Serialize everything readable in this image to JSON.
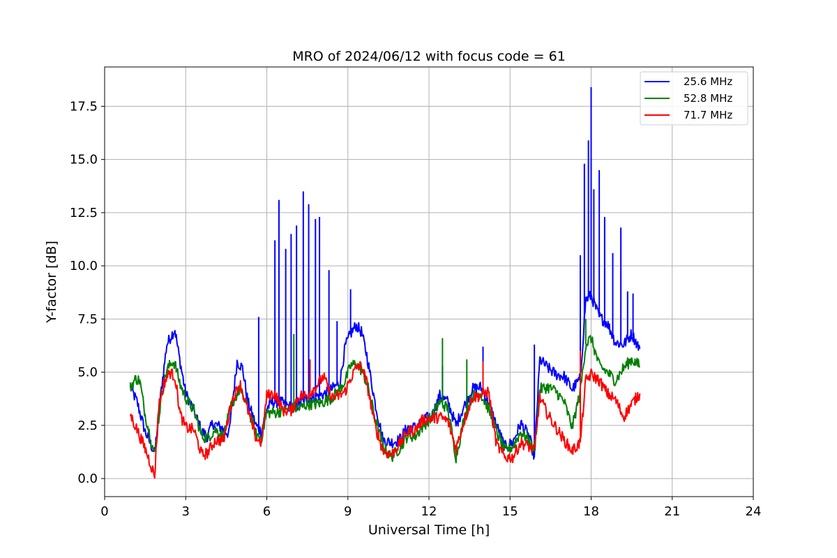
{
  "chart_data": {
    "type": "line",
    "title": "MRO of 2024/06/12 with focus code = 61",
    "xlabel": "Universal Time [h]",
    "ylabel": "Y-factor [dB]",
    "xlim": [
      0,
      24
    ],
    "ylim": [
      -0.85,
      19.35
    ],
    "xticks": [
      0,
      3,
      6,
      9,
      12,
      15,
      18,
      21,
      24
    ],
    "xtick_labels": [
      "0",
      "3",
      "6",
      "9",
      "12",
      "15",
      "18",
      "21",
      "24"
    ],
    "yticks": [
      0,
      2.5,
      5,
      7.5,
      10,
      12.5,
      15,
      17.5
    ],
    "ytick_labels": [
      "0.0",
      "2.5",
      "5.0",
      "7.5",
      "10.0",
      "12.5",
      "15.0",
      "17.5"
    ],
    "grid": true,
    "legend": "top-right",
    "series": [
      {
        "name": "25.6 MHz",
        "color": "#0000ff",
        "x": [
          0.95,
          1.2,
          1.5,
          1.85,
          2.1,
          2.3,
          2.5,
          2.6,
          2.75,
          3.0,
          3.3,
          3.6,
          3.8,
          4.0,
          4.3,
          4.6,
          4.9,
          5.1,
          5.3,
          5.6,
          5.8,
          6.0,
          6.2,
          6.5,
          6.8,
          7.0,
          7.3,
          7.6,
          7.9,
          8.2,
          8.5,
          8.7,
          8.9,
          9.1,
          9.3,
          9.5,
          9.7,
          10.0,
          10.3,
          10.6,
          10.9,
          11.2,
          11.5,
          11.8,
          12.1,
          12.4,
          12.7,
          13.0,
          13.3,
          13.6,
          13.9,
          14.2,
          14.5,
          14.8,
          15.1,
          15.4,
          15.7,
          15.9,
          16.1,
          16.4,
          16.7,
          17.0,
          17.3,
          17.6,
          17.8,
          18.0,
          18.3,
          18.6,
          18.9,
          19.2,
          19.5,
          19.8
        ],
        "y": [
          4.3,
          3.6,
          2.2,
          1.2,
          4.2,
          6.3,
          6.8,
          7.0,
          5.8,
          4.0,
          3.2,
          2.2,
          2.0,
          2.6,
          2.4,
          2.1,
          5.5,
          5.2,
          3.6,
          2.5,
          2.2,
          3.3,
          3.6,
          3.6,
          3.4,
          3.3,
          3.6,
          3.8,
          3.9,
          4.0,
          4.3,
          4.5,
          6.2,
          6.8,
          7.2,
          6.9,
          5.8,
          3.6,
          1.8,
          1.7,
          1.8,
          2.4,
          2.4,
          2.8,
          2.9,
          3.9,
          3.6,
          2.5,
          3.4,
          4.2,
          4.3,
          3.6,
          2.5,
          1.5,
          1.7,
          2.6,
          2.0,
          1.0,
          5.6,
          5.2,
          4.9,
          4.8,
          4.2,
          4.7,
          8.4,
          8.6,
          7.6,
          7.3,
          6.4,
          6.3,
          6.8,
          6.1
        ]
      },
      {
        "name": "52.8 MHz",
        "color": "#008000",
        "x": [
          0.95,
          1.15,
          1.3,
          1.5,
          1.85,
          2.1,
          2.3,
          2.5,
          2.6,
          2.8,
          3.0,
          3.3,
          3.6,
          3.8,
          4.1,
          4.4,
          4.7,
          5.0,
          5.3,
          5.6,
          5.8,
          6.0,
          6.3,
          6.6,
          6.9,
          7.2,
          7.5,
          7.8,
          8.1,
          8.4,
          8.7,
          8.9,
          9.1,
          9.3,
          9.5,
          9.7,
          10.0,
          10.3,
          10.6,
          10.9,
          11.2,
          11.5,
          11.8,
          12.1,
          12.4,
          12.7,
          13.0,
          13.3,
          13.6,
          13.9,
          14.2,
          14.5,
          14.8,
          15.1,
          15.4,
          15.7,
          15.9,
          16.1,
          16.4,
          16.7,
          17.0,
          17.3,
          17.6,
          17.8,
          18.0,
          18.3,
          18.6,
          18.9,
          19.2,
          19.5,
          19.8
        ],
        "y": [
          4.3,
          4.7,
          4.6,
          3.0,
          1.1,
          3.9,
          5.1,
          5.5,
          5.4,
          4.4,
          3.8,
          3.2,
          2.0,
          1.9,
          2.3,
          2.0,
          3.5,
          4.2,
          3.3,
          2.1,
          1.9,
          3.1,
          3.1,
          3.2,
          3.3,
          3.3,
          3.5,
          3.5,
          3.6,
          3.8,
          4.2,
          4.6,
          5.3,
          5.4,
          5.1,
          4.5,
          2.9,
          1.5,
          1.0,
          1.4,
          2.0,
          2.0,
          2.5,
          2.9,
          3.6,
          3.3,
          1.0,
          2.8,
          3.9,
          4.0,
          3.3,
          2.2,
          1.3,
          1.5,
          2.2,
          1.8,
          1.2,
          4.2,
          4.3,
          4.1,
          3.6,
          2.4,
          4.1,
          6.3,
          6.6,
          5.3,
          5.0,
          4.6,
          5.2,
          5.6,
          5.3
        ]
      },
      {
        "name": "71.7 MHz",
        "color": "#ff0000",
        "x": [
          0.95,
          1.2,
          1.5,
          1.7,
          1.85,
          2.0,
          2.2,
          2.4,
          2.6,
          2.8,
          3.0,
          3.3,
          3.6,
          3.8,
          4.1,
          4.4,
          4.7,
          5.0,
          5.3,
          5.6,
          5.8,
          6.0,
          6.3,
          6.6,
          6.9,
          7.2,
          7.5,
          7.8,
          8.1,
          8.4,
          8.7,
          8.9,
          9.1,
          9.3,
          9.5,
          9.7,
          10.0,
          10.3,
          10.6,
          10.9,
          11.2,
          11.5,
          11.8,
          12.1,
          12.4,
          12.7,
          13.0,
          13.3,
          13.6,
          13.9,
          14.2,
          14.5,
          14.8,
          15.1,
          15.4,
          15.7,
          15.9,
          16.1,
          16.4,
          16.7,
          17.0,
          17.3,
          17.6,
          17.8,
          18.0,
          18.3,
          18.6,
          18.9,
          19.2,
          19.5,
          19.8
        ],
        "y": [
          3.0,
          2.3,
          1.4,
          0.7,
          0.1,
          3.4,
          4.5,
          5.0,
          4.8,
          3.0,
          2.4,
          2.3,
          1.1,
          1.2,
          1.8,
          1.8,
          3.6,
          4.5,
          3.2,
          1.9,
          1.7,
          3.9,
          4.0,
          3.2,
          3.2,
          3.9,
          3.9,
          4.3,
          4.8,
          3.8,
          3.9,
          4.1,
          4.7,
          5.2,
          5.3,
          4.5,
          2.5,
          1.3,
          1.1,
          1.6,
          2.2,
          2.3,
          2.8,
          2.8,
          2.9,
          2.7,
          1.4,
          2.7,
          3.8,
          3.9,
          4.1,
          1.6,
          1.0,
          1.0,
          1.7,
          1.5,
          1.3,
          3.8,
          3.0,
          2.4,
          1.8,
          1.3,
          1.7,
          4.6,
          4.9,
          4.6,
          4.0,
          3.7,
          2.9,
          3.5,
          4.0
        ]
      }
    ],
    "spikes": [
      {
        "series": "25.6 MHz",
        "points": [
          [
            5.7,
            7.6
          ],
          [
            6.3,
            11.2
          ],
          [
            6.45,
            13.1
          ],
          [
            6.7,
            10.8
          ],
          [
            6.9,
            11.5
          ],
          [
            7.1,
            11.9
          ],
          [
            7.35,
            13.5
          ],
          [
            7.55,
            12.9
          ],
          [
            7.8,
            12.2
          ],
          [
            7.95,
            12.3
          ],
          [
            8.3,
            9.8
          ],
          [
            8.6,
            7.4
          ],
          [
            9.1,
            8.9
          ],
          [
            12.5,
            5.3
          ],
          [
            14.0,
            6.2
          ],
          [
            15.9,
            6.3
          ],
          [
            17.6,
            10.5
          ],
          [
            17.75,
            14.8
          ],
          [
            17.9,
            15.9
          ],
          [
            18.0,
            18.4
          ],
          [
            18.1,
            13.6
          ],
          [
            18.3,
            14.5
          ],
          [
            18.5,
            12.3
          ],
          [
            18.8,
            10.6
          ],
          [
            19.1,
            11.8
          ],
          [
            19.35,
            8.8
          ],
          [
            19.55,
            8.7
          ]
        ]
      },
      {
        "series": "52.8 MHz",
        "points": [
          [
            7.0,
            6.8
          ],
          [
            12.5,
            6.6
          ],
          [
            13.4,
            5.6
          ],
          [
            17.8,
            7.5
          ]
        ]
      },
      {
        "series": "71.7 MHz",
        "points": [
          [
            7.6,
            5.6
          ],
          [
            14.0,
            5.5
          ],
          [
            17.6,
            6.0
          ]
        ]
      }
    ]
  }
}
